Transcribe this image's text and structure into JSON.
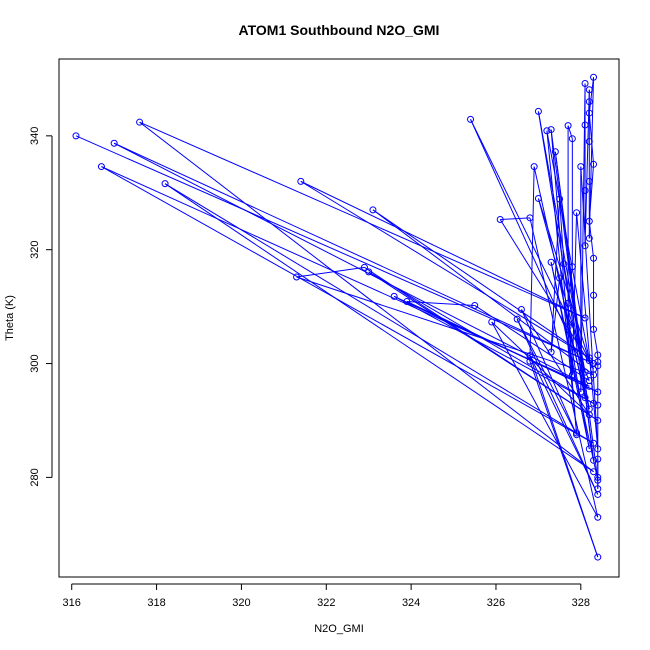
{
  "chart_data": {
    "type": "scatter",
    "title": "ATOM1 Southbound N2O_GMI",
    "xlabel": "N2O_GMI",
    "ylabel": "Theta (K)",
    "xlim": [
      315.7,
      328.9
    ],
    "ylim": [
      262.5,
      353.5
    ],
    "xticks": [
      316,
      318,
      320,
      322,
      324,
      326,
      328
    ],
    "yticks": [
      280,
      300,
      320,
      340
    ],
    "grid": false,
    "color": "#0000ff",
    "series": [
      {
        "points": [
          [
            316.1,
            340.0
          ],
          [
            328.3,
            300.0
          ],
          [
            317.0,
            338.7
          ],
          [
            328.2,
            296.0
          ],
          [
            316.7,
            334.6
          ],
          [
            328.3,
            286.0
          ],
          [
            318.2,
            331.6
          ],
          [
            328.3,
            281.0
          ],
          [
            317.6,
            342.4
          ],
          [
            328.1,
            308.0
          ],
          [
            321.4,
            332.0
          ],
          [
            328.2,
            301.0
          ],
          [
            323.1,
            327.0
          ],
          [
            328.3,
            298.0
          ],
          [
            321.3,
            315.2
          ],
          [
            322.9,
            316.9
          ],
          [
            328.4,
            290.0
          ],
          [
            323.0,
            316.1
          ],
          [
            328.3,
            293.0
          ],
          [
            323.6,
            311.8
          ],
          [
            328.4,
            295.0
          ],
          [
            323.9,
            310.9
          ],
          [
            325.5,
            310.2
          ],
          [
            328.2,
            297.0
          ],
          [
            325.4,
            342.9
          ],
          [
            328.3,
            299.0
          ],
          [
            326.1,
            325.3
          ],
          [
            326.8,
            325.6
          ],
          [
            328.4,
            273.0
          ],
          [
            325.9,
            307.3
          ],
          [
            328.2,
            291.0
          ],
          [
            326.6,
            309.5
          ],
          [
            327.9,
            287.5
          ],
          [
            326.5,
            307.8
          ],
          [
            328.4,
            277.0
          ],
          [
            326.8,
            301.4
          ],
          [
            328.4,
            266.0
          ],
          [
            326.8,
            300.4
          ],
          [
            326.9,
            334.6
          ],
          [
            328.1,
            294.0
          ],
          [
            327.0,
            344.3
          ],
          [
            328.1,
            298.5
          ],
          [
            327.0,
            329.0
          ],
          [
            328.2,
            300.5
          ],
          [
            327.2,
            340.9
          ],
          [
            327.9,
            287.8
          ],
          [
            327.3,
            341.1
          ],
          [
            328.3,
            283.0
          ],
          [
            327.4,
            337.2
          ],
          [
            328.4,
            279.5
          ],
          [
            327.3,
            317.8
          ],
          [
            328.2,
            285.0
          ],
          [
            327.5,
            315.0
          ],
          [
            327.3,
            302.0
          ],
          [
            327.5,
            328.9
          ],
          [
            327.6,
            317.5
          ],
          [
            328.2,
            292.0
          ],
          [
            327.7,
            306.5
          ],
          [
            327.7,
            341.8
          ],
          [
            327.8,
            339.5
          ],
          [
            327.8,
            317.0
          ],
          [
            327.7,
            310.6
          ],
          [
            327.8,
            298.0
          ],
          [
            327.9,
            326.5
          ],
          [
            328.4,
            285.0
          ],
          [
            328.0,
            334.6
          ],
          [
            328.0,
            295.0
          ],
          [
            328.1,
            349.2
          ],
          [
            328.1,
            341.9
          ],
          [
            328.1,
            330.4
          ],
          [
            328.1,
            320.7
          ],
          [
            328.2,
            348.1
          ],
          [
            328.2,
            346.0
          ],
          [
            328.2,
            339.0
          ],
          [
            328.2,
            332.0
          ],
          [
            328.2,
            322.0
          ],
          [
            328.3,
            350.3
          ],
          [
            328.2,
            344.0
          ],
          [
            328.3,
            335.0
          ],
          [
            328.2,
            325.0
          ],
          [
            328.3,
            318.5
          ],
          [
            328.3,
            312.0
          ],
          [
            328.3,
            306.0
          ],
          [
            328.4,
            301.5
          ],
          [
            328.4,
            300.3
          ],
          [
            328.4,
            299.6
          ],
          [
            328.4,
            292.7
          ],
          [
            328.4,
            280.0
          ],
          [
            328.4,
            278.0
          ],
          [
            328.4,
            283.2
          ]
        ]
      }
    ]
  }
}
